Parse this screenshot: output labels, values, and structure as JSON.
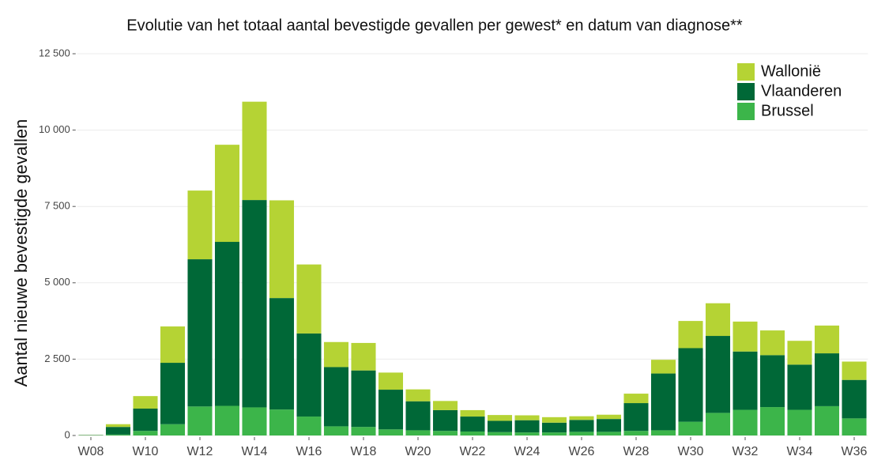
{
  "chart_data": {
    "type": "stacked_bar",
    "title": "Evolutie van het totaal aantal bevestigde gevallen per gewest* en datum van diagnose**",
    "y_label": "Aantal nieuwe bevestigde gevallen",
    "categories": [
      "W08",
      null,
      "W10",
      null,
      "W12",
      null,
      "W14",
      null,
      "W16",
      null,
      "W18",
      null,
      "W20",
      null,
      "W22",
      null,
      "W24",
      null,
      "W26",
      null,
      "W28",
      null,
      "W30",
      null,
      "W32",
      null,
      "W34",
      null,
      "W36"
    ],
    "series": [
      {
        "name": "Brussel",
        "color": "#3cb54a",
        "values": [
          5,
          30,
          150,
          370,
          950,
          970,
          920,
          850,
          620,
          300,
          280,
          200,
          170,
          150,
          130,
          110,
          100,
          100,
          120,
          120,
          150,
          170,
          450,
          740,
          840,
          930,
          840,
          960,
          560
        ]
      },
      {
        "name": "Vlaanderen",
        "color": "#006837",
        "values": [
          10,
          250,
          730,
          2010,
          4820,
          5370,
          6790,
          3650,
          2720,
          1940,
          1850,
          1300,
          950,
          680,
          490,
          370,
          400,
          320,
          390,
          420,
          910,
          1860,
          2410,
          2520,
          1910,
          1700,
          1480,
          1730,
          1260
        ]
      },
      {
        "name": "Wallonië",
        "color": "#b5d334",
        "values": [
          5,
          90,
          410,
          1190,
          2250,
          3180,
          3220,
          3200,
          2260,
          820,
          900,
          560,
          390,
          300,
          210,
          190,
          160,
          180,
          120,
          140,
          310,
          450,
          890,
          1070,
          980,
          810,
          780,
          910,
          600
        ]
      }
    ],
    "ylim": [
      0,
      12500
    ],
    "yticks": [
      0,
      {
        "value": 2500,
        "label": "2 500"
      },
      {
        "value": 5000,
        "label": "5 000"
      },
      {
        "value": 7500,
        "label": "7 500"
      },
      {
        "value": 10000,
        "label": "10 000"
      },
      {
        "value": 12500,
        "label": "12 500"
      }
    ],
    "grid": true,
    "legend": "top-right"
  }
}
